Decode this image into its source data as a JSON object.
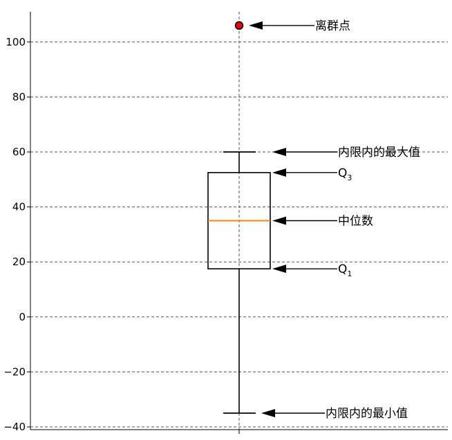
{
  "chart_data": {
    "type": "box",
    "title": "",
    "xlabel": "",
    "ylabel": "",
    "ylim": [
      -41,
      111
    ],
    "yticks": [
      -40,
      -20,
      0,
      20,
      40,
      60,
      80,
      100
    ],
    "ytick_labels": [
      "−40",
      "−20",
      "0",
      "20",
      "40",
      "60",
      "80",
      "100"
    ],
    "grid": true,
    "box": {
      "whisker_low": -35,
      "q1": 17.5,
      "median": 35,
      "q3": 52.5,
      "whisker_high": 60,
      "outliers": [
        106
      ]
    },
    "colors": {
      "box": "#000000",
      "median": "#ff7f0e",
      "outlier": "#e8000b",
      "grid": "#555555",
      "arrow": "#000000"
    },
    "annotations": [
      {
        "id": "outlier",
        "text": "离群点",
        "target": 106
      },
      {
        "id": "upper-whisker",
        "text": "内限内的最大值",
        "target": 60
      },
      {
        "id": "q3",
        "text": "Q",
        "sub": "3",
        "target": 52.5
      },
      {
        "id": "median",
        "text": "中位数",
        "target": 35
      },
      {
        "id": "q1",
        "text": "Q",
        "sub": "1",
        "target": 17.5
      },
      {
        "id": "lower-whisker",
        "text": "内限内的最小值",
        "target": -35
      }
    ]
  }
}
